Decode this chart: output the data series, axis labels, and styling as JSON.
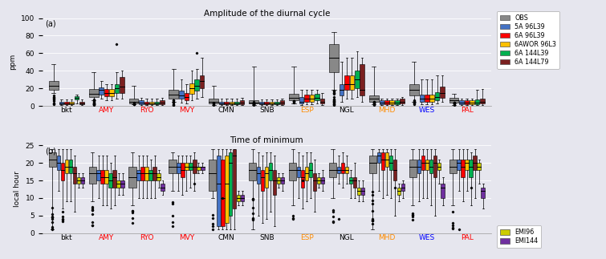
{
  "title_a": "Amplitude of the diurnal cycle",
  "title_b": "Time of minimum",
  "ylabel_a": "ppm",
  "ylabel_b": "local hour",
  "stations": [
    "bkt",
    "AMY",
    "RYO",
    "MVY",
    "CMN",
    "SNB",
    "ESP",
    "NGL",
    "MHD",
    "WES",
    "PAL"
  ],
  "station_colors_a": [
    "black",
    "red",
    "red",
    "red",
    "black",
    "black",
    "darkorange",
    "black",
    "darkorange",
    "blue",
    "red"
  ],
  "station_colors_b": [
    "black",
    "red",
    "red",
    "red",
    "black",
    "black",
    "darkorange",
    "black",
    "darkorange",
    "blue",
    "red"
  ],
  "colors_a": {
    "OBS": "#888888",
    "5A 96L39": "#4472C4",
    "6A 96L39": "#FF0000",
    "6AWOR 96L3": "#FFC000",
    "6A 144L39": "#00B050",
    "6A 144L79": "#7B2020"
  },
  "legend_keys_a": [
    "OBS",
    "5A 96L39",
    "6A 96L39",
    "6AWOR 96L3",
    "6A 144L39",
    "6A 144L79"
  ],
  "legend_keys_b": [
    "OBS",
    "5A 96L39",
    "6A 96L39",
    "6AWOR 96L3",
    "6A 144L39",
    "6A 144L79",
    "EMI96",
    "EMI144"
  ],
  "colors_b_extra": {
    "EMI96": "#CCCC00",
    "EMI144": "#7030A0"
  },
  "bg_color": "#E6E6EE",
  "ylim_a": [
    0,
    100
  ],
  "ylim_b": [
    0,
    25
  ],
  "yticks_a": [
    0,
    20,
    40,
    60,
    80,
    100
  ],
  "yticks_b": [
    0,
    5,
    10,
    15,
    20,
    25
  ]
}
